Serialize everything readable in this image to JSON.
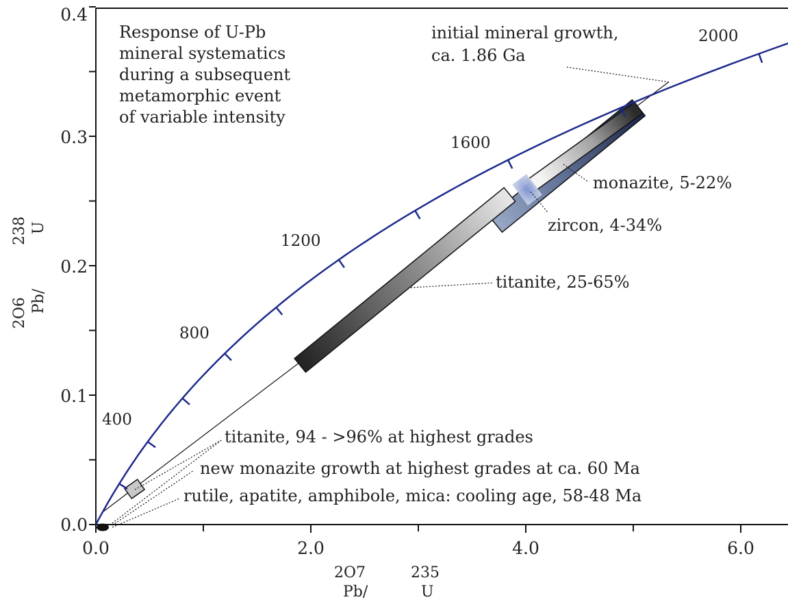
{
  "chart_data": {
    "type": "line",
    "title": "",
    "x_axis": {
      "isotope_mass": "2O7",
      "element": "Pb/",
      "denominator_mass": "235",
      "denominator_element": "U",
      "range": [
        0,
        6.5
      ],
      "ticks": [
        0,
        1,
        2,
        3,
        4,
        5,
        6
      ],
      "tick_labels": [
        "0.0",
        "2.0",
        "4.0",
        "6.0"
      ],
      "labeled_ticks": [
        0,
        2,
        4,
        6
      ]
    },
    "y_axis": {
      "isotope_mass": "2O6",
      "element": "Pb/",
      "denominator_mass": "238",
      "denominator_element": "U",
      "range": [
        0,
        0.4
      ],
      "ticks": [
        0,
        0.05,
        0.1,
        0.15,
        0.2,
        0.25,
        0.3,
        0.35,
        0.4
      ],
      "tick_labels": [
        "0.0",
        "0.1",
        "0.2",
        "0.3",
        "0.4"
      ],
      "labeled_ticks": [
        0,
        0.1,
        0.2,
        0.3,
        0.4
      ]
    },
    "grid": false,
    "concordia": {
      "color": "#1c2a8c",
      "age_ticks_ma": [
        200,
        400,
        600,
        800,
        1000,
        1200,
        1400,
        1600,
        1800,
        2000
      ],
      "age_labels": [
        {
          "age": 400,
          "text": "400"
        },
        {
          "age": 800,
          "text": "800"
        },
        {
          "age": 1200,
          "text": "1200"
        },
        {
          "age": 1600,
          "text": "1600"
        },
        {
          "age": 2000,
          "text": "2000"
        }
      ]
    },
    "discordia": {
      "upper_intercept": [
        5.33,
        0.342
      ],
      "lower_intercept": [
        0.06,
        0.0094
      ]
    },
    "boxes": [
      {
        "mineral": "titanite",
        "from": [
          1.9,
          0.123
        ],
        "to": [
          3.85,
          0.255
        ],
        "fill": "gradient-dark"
      },
      {
        "mineral": "zircon",
        "from": [
          3.72,
          0.232
        ],
        "to": [
          5.05,
          0.322
        ],
        "fill": "blue-grey"
      },
      {
        "mineral": "monazite",
        "from": [
          4.05,
          0.262
        ],
        "to": [
          5.05,
          0.322
        ],
        "fill": "light-grey"
      },
      {
        "mineral": "titanite-small",
        "from": [
          0.3,
          0.024
        ],
        "to": [
          0.42,
          0.031
        ],
        "fill": "grey"
      }
    ],
    "annotations": {
      "box_text": [
        "Response of U-Pb",
        "mineral systematics",
        "during a subsequent",
        "metamorphic event",
        "of variable intensity"
      ],
      "initial_growth": [
        "initial  mineral growth,",
        "ca. 1.86 Ga"
      ],
      "monazite": "monazite, 5-22%",
      "zircon": "zircon, 4-34%",
      "titanite": "titanite, 25-65%",
      "titanite_high": "titanite, 94 - >96% at highest grades",
      "monazite_new": "new monazite growth at highest grades at ca. 60 Ma",
      "cooling": "rutile, apatite, amphibole, mica: cooling age, 58-48 Ma"
    }
  }
}
